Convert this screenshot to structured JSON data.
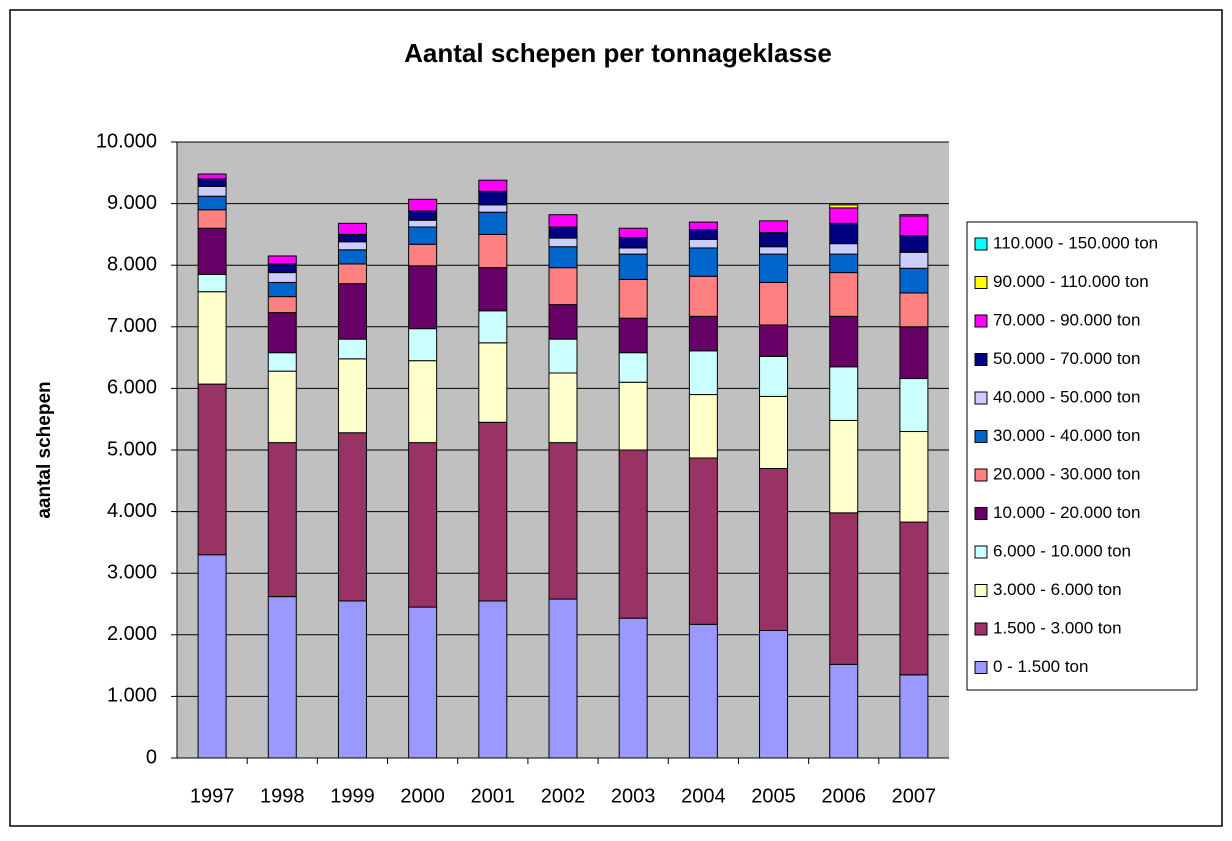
{
  "chart_data": {
    "type": "stacked_bar",
    "title": "Aantal schepen per tonnageklasse",
    "y_label": "aantal schepen",
    "categories": [
      "1997",
      "1998",
      "1999",
      "2000",
      "2001",
      "2002",
      "2003",
      "2004",
      "2005",
      "2006",
      "2007"
    ],
    "ylim": [
      0,
      10000
    ],
    "yticks": [
      0,
      {
        "value": 1000,
        "label": "1.000"
      },
      {
        "value": 2000,
        "label": "2.000"
      },
      {
        "value": 3000,
        "label": "3.000"
      },
      {
        "value": 4000,
        "label": "4.000"
      },
      {
        "value": 5000,
        "label": "5.000"
      },
      {
        "value": 6000,
        "label": "6.000"
      },
      {
        "value": 7000,
        "label": "7.000"
      },
      {
        "value": 8000,
        "label": "8.000"
      },
      {
        "value": 9000,
        "label": "9.000"
      },
      {
        "value": 10000,
        "label": "10.000"
      }
    ],
    "grid": true,
    "legend_position": "right",
    "series": [
      {
        "name": "0 - 1.500 ton",
        "color": "#9999ff",
        "values": [
          3300,
          2620,
          2550,
          2450,
          2550,
          2580,
          2270,
          2170,
          2070,
          1520,
          1350
        ]
      },
      {
        "name": "1.500 - 3.000 ton",
        "color": "#993366",
        "values": [
          2770,
          2500,
          2730,
          2670,
          2900,
          2540,
          2730,
          2700,
          2630,
          2460,
          2480
        ]
      },
      {
        "name": "3.000 - 6.000 ton",
        "color": "#ffffcc",
        "values": [
          1500,
          1160,
          1200,
          1330,
          1290,
          1130,
          1100,
          1030,
          1170,
          1500,
          1470
        ]
      },
      {
        "name": "6.000 - 10.000 ton",
        "color": "#ccffff",
        "values": [
          280,
          300,
          320,
          520,
          520,
          550,
          480,
          710,
          650,
          870,
          860
        ]
      },
      {
        "name": "10.000 - 20.000 ton",
        "color": "#660066",
        "values": [
          750,
          650,
          900,
          1020,
          700,
          560,
          560,
          560,
          510,
          820,
          840
        ]
      },
      {
        "name": "20.000 - 30.000 ton",
        "color": "#ff8080",
        "values": [
          300,
          260,
          320,
          350,
          540,
          600,
          630,
          650,
          690,
          710,
          550
        ]
      },
      {
        "name": "30.000 - 40.000 ton",
        "color": "#0066cc",
        "values": [
          220,
          230,
          230,
          280,
          360,
          340,
          410,
          460,
          460,
          300,
          400
        ]
      },
      {
        "name": "40.000 - 50.000 ton",
        "color": "#ccccff",
        "values": [
          160,
          160,
          130,
          110,
          120,
          140,
          100,
          140,
          120,
          170,
          260
        ]
      },
      {
        "name": "50.000 - 70.000 ton",
        "color": "#000080",
        "values": [
          120,
          140,
          120,
          150,
          220,
          180,
          170,
          160,
          230,
          330,
          270
        ]
      },
      {
        "name": "70.000 - 90.000 ton",
        "color": "#ff00ff",
        "values": [
          80,
          130,
          180,
          190,
          180,
          200,
          150,
          120,
          190,
          250,
          320
        ]
      },
      {
        "name": "90.000 - 110.000 ton",
        "color": "#ffff00",
        "values": [
          0,
          0,
          0,
          0,
          0,
          0,
          0,
          0,
          0,
          50,
          20
        ]
      },
      {
        "name": "110.000 - 150.000 ton",
        "color": "#00ffff",
        "values": [
          0,
          0,
          0,
          0,
          0,
          0,
          0,
          0,
          0,
          0,
          0
        ]
      }
    ]
  }
}
